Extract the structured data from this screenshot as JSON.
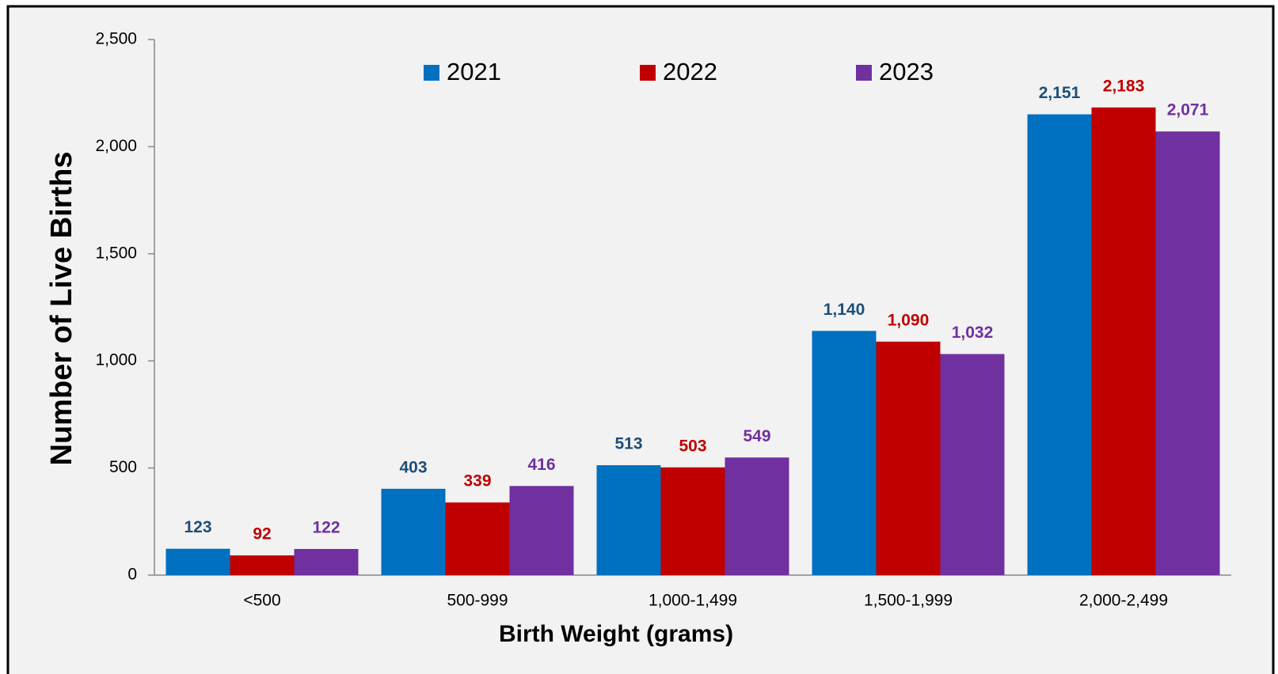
{
  "chart_data": {
    "type": "bar",
    "x_label": "Birth Weight (grams)",
    "y_label": "Number of Live Births",
    "categories": [
      "<500",
      "500-999",
      "1,000-1,499",
      "1,500-1,999",
      "2,000-2,499"
    ],
    "series": [
      {
        "name": "2021",
        "color": "#0070c0",
        "label_color": "#1f4e79",
        "values": [
          123,
          403,
          513,
          1140,
          2151
        ],
        "value_labels": [
          "123",
          "403",
          "513",
          "1,140",
          "2,151"
        ]
      },
      {
        "name": "2022",
        "color": "#c00000",
        "label_color": "#c00000",
        "values": [
          92,
          339,
          503,
          1090,
          2183
        ],
        "value_labels": [
          "92",
          "339",
          "503",
          "1,090",
          "2,183"
        ]
      },
      {
        "name": "2023",
        "color": "#7030a0",
        "label_color": "#7030a0",
        "values": [
          122,
          416,
          549,
          1032,
          2071
        ],
        "value_labels": [
          "122",
          "416",
          "549",
          "1,032",
          "2,071"
        ]
      }
    ],
    "ylim": [
      0,
      2500
    ],
    "yticks": [
      0,
      500,
      {
        "value": 1000,
        "label": "1,000"
      },
      {
        "value": 1500,
        "label": "1,500"
      },
      {
        "value": 2000,
        "label": "2,000"
      },
      {
        "value": 2500,
        "label": "2,500"
      }
    ],
    "grid": false,
    "legend": "top"
  }
}
